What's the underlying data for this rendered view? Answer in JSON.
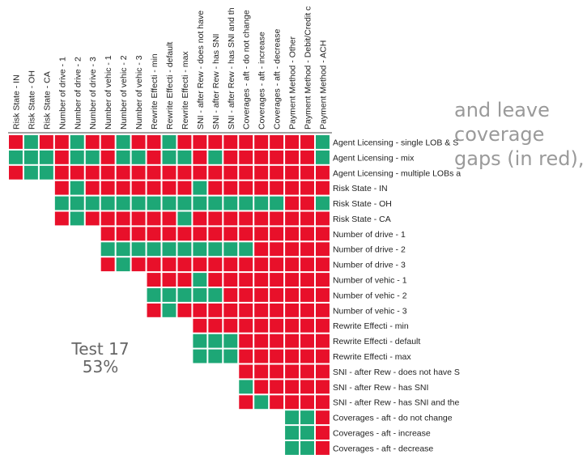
{
  "chart_data": {
    "type": "heatmap",
    "columns": [
      "Risk State - IN",
      "Risk State - OH",
      "Risk State - CA",
      "Number of drive - 1",
      "Number of drive - 2",
      "Number of drive - 3",
      "Number of vehic - 1",
      "Number of vehic - 2",
      "Number of vehic - 3",
      "Rewrite Effecti - min",
      "Rewrite Effecti - default",
      "Rewrite Effecti - max",
      "SNI - after Rew - does not have",
      "SNI - after Rew - has SNI",
      "SNI - after Rew - has SNI and th",
      "Coverages - aft - do not change",
      "Coverages - aft - increase",
      "Coverages - aft - decrease",
      "Payment Method - Other",
      "Payment Method - Debit/Credit c",
      "Payment Method - ACH"
    ],
    "rows": [
      "Agent Licensing - single LOB & S",
      "Agent Licensing - mix",
      "Agent Licensing - multiple LOBs a",
      "Risk State - IN",
      "Risk State - OH",
      "Risk State - CA",
      "Number of drive - 1",
      "Number of drive - 2",
      "Number of drive - 3",
      "Number of vehic - 1",
      "Number of vehic - 2",
      "Number of vehic - 3",
      "Rewrite Effecti - min",
      "Rewrite Effecti - default",
      "Rewrite Effecti - max",
      "SNI - after Rew - does not have S",
      "SNI - after Rew - has SNI",
      "SNI - after Rew - has SNI and the",
      "Coverages - aft - do not change",
      "Coverages - aft - increase",
      "Coverages - aft - decrease"
    ],
    "row_start_col": [
      0,
      0,
      0,
      3,
      3,
      3,
      6,
      6,
      6,
      9,
      9,
      9,
      12,
      12,
      12,
      15,
      15,
      15,
      18,
      18,
      18
    ],
    "cells": [
      "RGRRGRRGRRGRRRRRRRRRG",
      "GGGRGGRGGRGGRGRRRRRRG",
      "RGGRRRRRRRRRRRRRRRRRR",
      "RGRRRRRRRGRRRRRRRR",
      "GGGGGGGGGGGGGGGRRG",
      "RGRRRRRRGRRRRRRRRR",
      "RRRRRRRRRRRRRRR",
      "GGGGGGGGGGRRRRR",
      "RGRRRRRRRRRRRRR",
      "RRRGRRRRRRRR",
      "GGGGGRRRRRRR",
      "RGRRRRRRRRRR",
      "RRRRRRRRR",
      "GGGRRRRRR",
      "GGGRRRRRR",
      "RRRRRR",
      "GRRRRR",
      "RGRRRR",
      "GGR",
      "GGR",
      "GGR"
    ],
    "legend": {
      "R": "#e8102a",
      "G": "#1da776"
    }
  },
  "annotation": {
    "title": "Test 17",
    "value": "53%"
  },
  "side_text": "and leave\ncoverage\ngaps (in red),"
}
